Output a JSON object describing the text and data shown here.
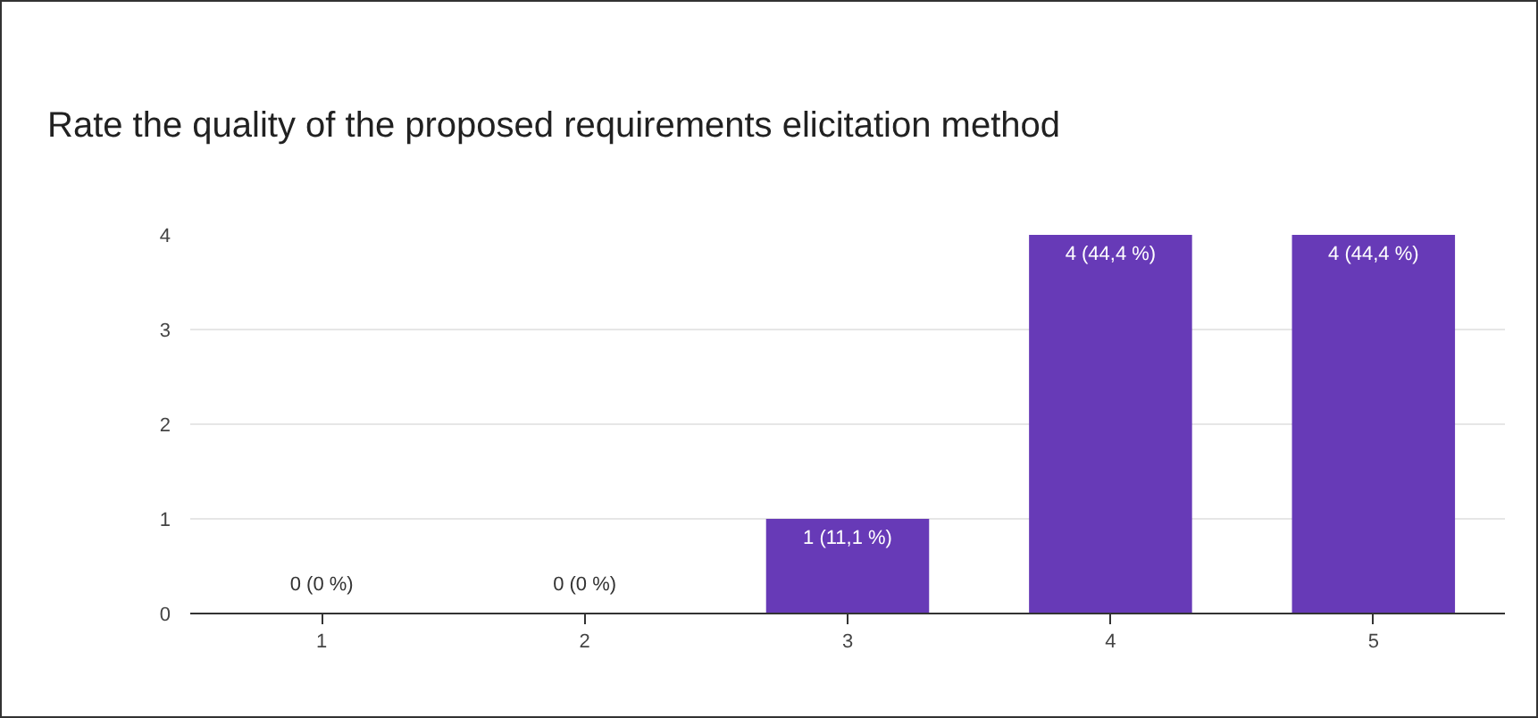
{
  "chart_data": {
    "type": "bar",
    "title": "Rate the quality of the proposed requirements elicitation method",
    "categories": [
      "1",
      "2",
      "3",
      "4",
      "5"
    ],
    "values": [
      0,
      0,
      1,
      4,
      4
    ],
    "color": "#673ab7",
    "value_labels": [
      "0 (0 %)",
      "0 (0 %)",
      "1 (11,1 %)",
      "4 (44,4 %)",
      "4 (44,4 %)"
    ],
    "ylim": [
      0,
      4
    ],
    "yticks": [
      0,
      1,
      2,
      3,
      4
    ],
    "grid": "y"
  }
}
